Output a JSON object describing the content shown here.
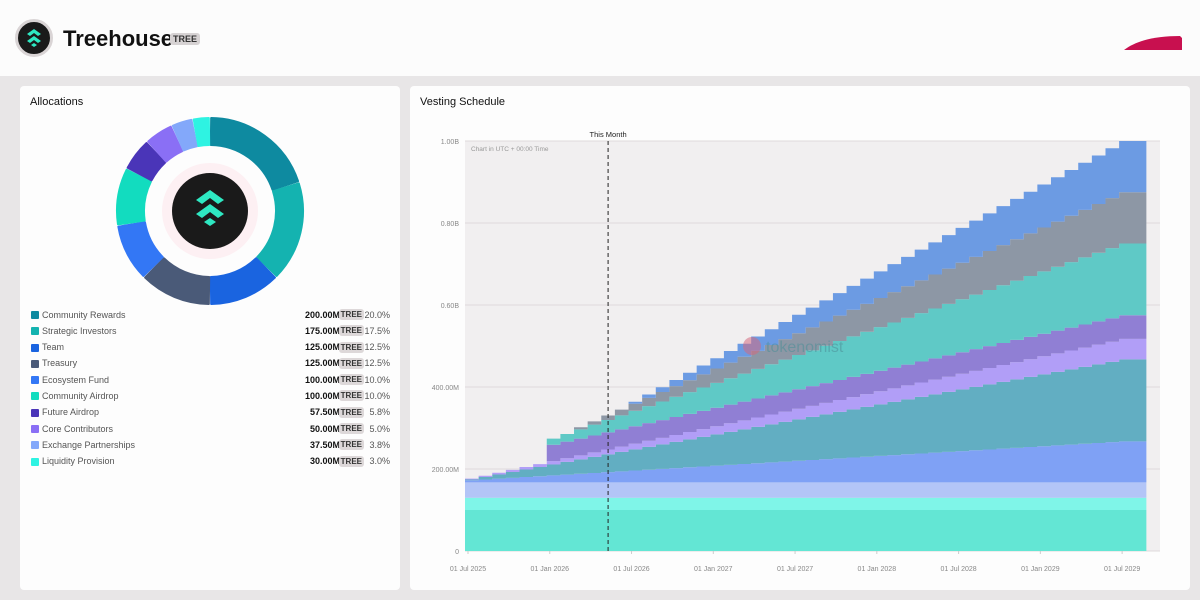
{
  "header": {
    "project_name": "Treehouse",
    "ticker": "TREE",
    "logo_icon": "treehouse-logo-icon",
    "brand_mark_icon": "swoosh-icon"
  },
  "allocations": {
    "title": "Allocations",
    "ticker": "TREE",
    "items": [
      {
        "name": "Community Rewards",
        "amount": "200.00M",
        "pct": "20.0%",
        "value": 200,
        "color": "#0e8aa0"
      },
      {
        "name": "Strategic Investors",
        "amount": "175.00M",
        "pct": "17.5%",
        "value": 175,
        "color": "#14b3b0"
      },
      {
        "name": "Team",
        "amount": "125.00M",
        "pct": "12.5%",
        "value": 125,
        "color": "#1a64e0"
      },
      {
        "name": "Treasury",
        "amount": "125.00M",
        "pct": "12.5%",
        "value": 125,
        "color": "#4a5a78"
      },
      {
        "name": "Ecosystem Fund",
        "amount": "100.00M",
        "pct": "10.0%",
        "value": 100,
        "color": "#3377f5"
      },
      {
        "name": "Community Airdrop",
        "amount": "100.00M",
        "pct": "10.0%",
        "value": 100,
        "color": "#12dcbf"
      },
      {
        "name": "Future Airdrop",
        "amount": "57.50M",
        "pct": "5.8%",
        "value": 57.5,
        "color": "#4a35b8"
      },
      {
        "name": "Core Contributors",
        "amount": "50.00M",
        "pct": "5.0%",
        "value": 50,
        "color": "#8a6ff5"
      },
      {
        "name": "Exchange Partnerships",
        "amount": "37.50M",
        "pct": "3.8%",
        "value": 37.5,
        "color": "#83a8fa"
      },
      {
        "name": "Liquidity Provision",
        "amount": "30.00M",
        "pct": "3.0%",
        "value": 30,
        "color": "#2ef3e2"
      }
    ]
  },
  "vesting": {
    "title": "Vesting Schedule",
    "marker_label": "This Month",
    "note": "Chart in UTC + 00:00 Time",
    "watermark": "tokenomist"
  },
  "chart_data": {
    "type": "area",
    "title": "Vesting Schedule",
    "xlabel": "",
    "ylabel": "",
    "stacked": true,
    "step": true,
    "x_start": "2025-07",
    "x_end": "2029-09",
    "ylim": [
      0,
      1000
    ],
    "y_unit": "M TREE",
    "y_ticks": [
      "0",
      "200.00M",
      "400.00M",
      "0.60B",
      "0.80B",
      "1.00B"
    ],
    "y_tick_values": [
      0,
      200,
      400,
      600,
      800,
      1000
    ],
    "x_ticks": [
      "01 Jul 2025",
      "01 Jan 2026",
      "01 Jul 2026",
      "01 Jan 2027",
      "01 Jul 2027",
      "01 Jan 2028",
      "01 Jul 2028",
      "01 Jan 2029",
      "01 Jul 2029"
    ],
    "marker_month": "2026-05",
    "grid": true,
    "series": [
      {
        "name": "Community Airdrop",
        "color": "#63e6d4",
        "start": 100,
        "end": 100,
        "cliff_month": null,
        "vest_start": 0,
        "vest_end": 0
      },
      {
        "name": "Liquidity Provision",
        "color": "#7ff5e8",
        "start": 30,
        "end": 30,
        "cliff_month": null,
        "vest_start": 0,
        "vest_end": 0
      },
      {
        "name": "Exchange Partnerships",
        "color": "#b3c5f7",
        "start": 37.5,
        "end": 37.5,
        "cliff_month": null,
        "vest_start": 0,
        "vest_end": 0
      },
      {
        "name": "Ecosystem Fund",
        "color": "#7fa1f5",
        "start": 5,
        "end": 100,
        "cliff_month": null,
        "vest_start": 0,
        "vest_end": 48
      },
      {
        "name": "Community Rewards",
        "color": "#62aec2",
        "start": 2,
        "end": 200,
        "cliff_month": null,
        "vest_start": 0,
        "vest_end": 48
      },
      {
        "name": "Core Contributors",
        "color": "#b19ef7",
        "start": 2,
        "end": 50,
        "cliff_month": null,
        "vest_start": 0,
        "vest_end": 48
      },
      {
        "name": "Future Airdrop",
        "color": "#907fd4",
        "start": 0,
        "end": 57.5,
        "cliff_month": 6,
        "cliff_amount": 40,
        "vest_start": 6,
        "vest_end": 48
      },
      {
        "name": "Strategic Investors",
        "color": "#5fc9c6",
        "start": 0,
        "end": 175,
        "cliff_month": 6,
        "cliff_amount": 15,
        "vest_start": 6,
        "vest_end": 48
      },
      {
        "name": "Treasury",
        "color": "#8d97a5",
        "start": 0,
        "end": 125,
        "cliff_month": 8,
        "cliff_amount": 5,
        "vest_start": 8,
        "vest_end": 48
      },
      {
        "name": "Team",
        "color": "#6c9be3",
        "start": 0,
        "end": 125,
        "cliff_month": 12,
        "cliff_amount": 5,
        "vest_start": 12,
        "vest_end": 48
      }
    ]
  }
}
